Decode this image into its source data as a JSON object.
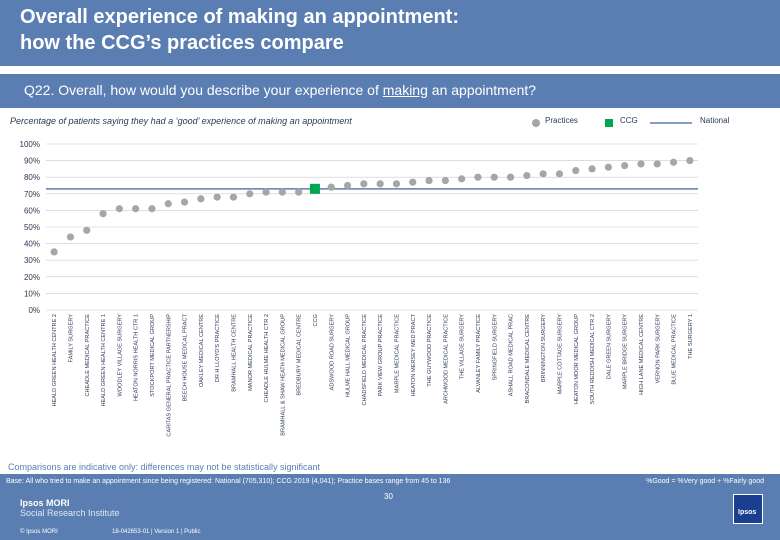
{
  "header": {
    "title_line1": "Overall experience of making an appointment:",
    "title_line2": "how the CCG’s practices compare"
  },
  "question": {
    "pre": "Q22. Overall, how would you describe your experience of ",
    "underlined": "making",
    "post": " an appointment?"
  },
  "subtitle": "Percentage of patients saying they had  a ‘good’ experience of making an appointment",
  "legend": {
    "practices": "Practices",
    "ccg": "CCG",
    "national": "National"
  },
  "colors": {
    "header": "#5b7eb2",
    "practice": "#a6a6a6",
    "ccg": "#00a651",
    "national": "#5b7eb2",
    "grid": "#c9c9c9",
    "text": "#2a3a52"
  },
  "chart_data": {
    "type": "scatter",
    "title": "Percentage of patients saying they had  a ‘good’ experience of making an appointment",
    "ylim": [
      0,
      100
    ],
    "yticks": [
      "0%",
      "10%",
      "20%",
      "30%",
      "40%",
      "50%",
      "60%",
      "70%",
      "80%",
      "90%",
      "100%"
    ],
    "national_value": 73,
    "ccg_value": 73,
    "ccg_label": "CCG",
    "categories": [
      "HEALD GREEN HEALTH CENTRE 2",
      "FAMILY SURGERY",
      "CHEADLE MEDICAL PRACTICE",
      "HEALD GREEN HEALTH CENTRE 1",
      "WOODLEY VILLAGE SURGERY",
      "HEATON NORRIS HEALTH CTR 1",
      "STOCKPORT MEDICAL GROUP",
      "CARITAS GENERAL PRACTICE PARTNERSHIP",
      "BEECH HOUSE MEDICAL PRACT",
      "OAKLEY MEDICAL CENTRE",
      "DR H LLOYD'S PRACTICE",
      "BRAMHALL HEALTH CENTRE",
      "MANOR MEDICAL PRACTICE",
      "CHEADLE HULME HEALTH CTR 2",
      "BRAMHALL & SHAW HEATH MEDICAL GROUP",
      "BREDBURY MEDICAL CENTRE",
      "CCG",
      "ADSWOOD ROAD SURGERY",
      "HULME HALL MEDICAL GROUP",
      "CHADSFIELD MEDICAL PRACTICE",
      "PARK VIEW GROUP PRACTICE",
      "MARPLE MEDICAL PRACTICE",
      "HEATON MERSEY MED PRACT",
      "THE GUYWOOD PRACTICE",
      "ARCHWOOD MEDICAL PRACTICE",
      "THE VILLAGE SURGERY",
      "ALVANLEY FAMILY PRACTICE",
      "SPRINGFIELD SURGERY",
      "ASHALL ROAD MEDICAL PRAC",
      "BRACONDALE MEDICAL CENTRE",
      "BRINNINGTON SURGERY",
      "MARPLE COTTAGE SURGERY",
      "HEATON MOOR MEDICAL GROUP",
      "SOUTH REDDISH MEDICAL CTR 2",
      "DALE GREEN SURGERY",
      "MARPLE BRIDGE SURGERY",
      "HIGH LANE MEDICAL CENTRE",
      "VERNON PARK SURGERY",
      "BLUE MEDICAL PRACTICE",
      "THE SURGERY 1"
    ],
    "values": [
      35,
      44,
      48,
      58,
      61,
      61,
      61,
      64,
      65,
      67,
      68,
      68,
      70,
      71,
      71,
      71,
      73,
      74,
      75,
      76,
      76,
      76,
      77,
      78,
      78,
      79,
      80,
      80,
      80,
      81,
      82,
      82,
      84,
      85,
      86,
      87,
      88,
      88,
      89,
      90
    ]
  },
  "comparisons": "Comparisons are indicative only: differences may not be statistically significant",
  "footer": {
    "base": "Base: All who tried to make an appointment since being registered: National (705,310); CCG 2019 (4,041); Practice bases range from 45 to 136",
    "key": "%Good = %Very good + %Fairly good",
    "brand_line1": "Ipsos MORI",
    "brand_line2": "Social Research Institute",
    "copyright": "© Ipsos MORI",
    "job_ref": "18-042653-01 | Version 1 | Public",
    "page_number": "30",
    "logo_text": "Ipsos"
  }
}
